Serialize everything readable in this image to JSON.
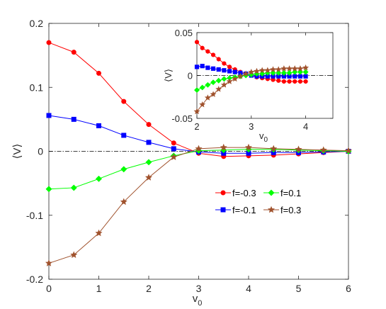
{
  "chart_data": [
    {
      "type": "line",
      "xlabel": "v",
      "xlabel_sub": "0",
      "ylabel": "⟨V⟩",
      "xlim": [
        0,
        6
      ],
      "ylim": [
        -0.2,
        0.2
      ],
      "xticks": [
        "0",
        "1",
        "2",
        "3",
        "4",
        "5",
        "6"
      ],
      "yticks": [
        "-0.2",
        "-0.1",
        "0",
        "0.1",
        "0.2"
      ],
      "reference_line": {
        "y": 0,
        "style": "dash-dot",
        "color": "#000000"
      },
      "x": [
        0,
        0.5,
        1,
        1.5,
        2,
        2.5,
        3,
        3.5,
        4,
        4.5,
        5,
        5.5,
        6
      ],
      "series": [
        {
          "name": "f=-0.3",
          "color": "#ff0000",
          "marker": "circle",
          "values": [
            0.17,
            0.155,
            0.122,
            0.078,
            0.042,
            0.013,
            -0.003,
            -0.008,
            -0.007,
            -0.006,
            -0.004,
            -0.002,
            0.0
          ]
        },
        {
          "name": "f=-0.1",
          "color": "#0000ff",
          "marker": "square",
          "values": [
            0.056,
            0.05,
            0.04,
            0.025,
            0.014,
            0.004,
            -0.001,
            -0.003,
            -0.003,
            -0.002,
            -0.002,
            -0.001,
            0.0
          ]
        },
        {
          "name": "f=0.1",
          "color": "#00ff00",
          "marker": "diamond",
          "values": [
            -0.059,
            -0.057,
            -0.043,
            -0.028,
            -0.017,
            -0.007,
            0.001,
            0.002,
            0.003,
            0.003,
            0.002,
            0.001,
            0.0
          ]
        },
        {
          "name": "f=0.3",
          "color": "#a0522d",
          "marker": "star",
          "values": [
            -0.175,
            -0.162,
            -0.128,
            -0.079,
            -0.041,
            -0.009,
            0.004,
            0.006,
            0.006,
            0.004,
            0.003,
            0.002,
            0.001
          ]
        }
      ],
      "legend": {
        "placement": "center-right",
        "entries": [
          "f=-0.3",
          "f=0.1",
          "f=-0.1",
          "f=0.3"
        ]
      }
    },
    {
      "type": "line",
      "inset": true,
      "xlabel": "v",
      "xlabel_sub": "0",
      "ylabel": "⟨V⟩",
      "xlim": [
        2,
        4.5
      ],
      "ylim": [
        -0.05,
        0.05
      ],
      "xticks": [
        "2",
        "3",
        "4"
      ],
      "xtick_values": [
        2,
        3,
        4
      ],
      "yticks": [
        "-0.05",
        "0",
        "0.05"
      ],
      "ytick_values": [
        -0.05,
        0,
        0.05
      ],
      "reference_line": {
        "y": 0,
        "style": "dash-dot",
        "color": "#000000"
      },
      "x": [
        2,
        2.1,
        2.2,
        2.3,
        2.4,
        2.5,
        2.6,
        2.7,
        2.8,
        2.9,
        3.0,
        3.1,
        3.2,
        3.3,
        3.4,
        3.5,
        3.6,
        3.7,
        3.8,
        3.9,
        4.0
      ],
      "series": [
        {
          "name": "f=-0.3",
          "color": "#ff0000",
          "marker": "circle",
          "values": [
            0.039,
            0.032,
            0.028,
            0.024,
            0.019,
            0.014,
            0.01,
            0.007,
            0.004,
            0.002,
            0.0,
            -0.002,
            -0.003,
            -0.004,
            -0.005,
            -0.006,
            -0.007,
            -0.007,
            -0.007,
            -0.007,
            -0.007
          ]
        },
        {
          "name": "f=-0.1",
          "color": "#0000ff",
          "marker": "square",
          "values": [
            0.01,
            0.011,
            0.009,
            0.008,
            0.007,
            0.006,
            0.005,
            0.004,
            0.003,
            0.002,
            0.0,
            -0.001,
            -0.001,
            -0.001,
            -0.001,
            -0.001,
            -0.001,
            -0.001,
            -0.001,
            -0.001,
            -0.001
          ]
        },
        {
          "name": "f=0.1",
          "color": "#00ff00",
          "marker": "diamond",
          "values": [
            -0.017,
            -0.014,
            -0.011,
            -0.008,
            -0.006,
            -0.004,
            -0.003,
            -0.002,
            -0.001,
            0.0,
            0.001,
            0.002,
            0.002,
            0.003,
            0.003,
            0.003,
            0.003,
            0.003,
            0.004,
            0.004,
            0.004
          ]
        },
        {
          "name": "f=0.3",
          "color": "#a0522d",
          "marker": "star",
          "values": [
            -0.042,
            -0.034,
            -0.026,
            -0.022,
            -0.016,
            -0.011,
            -0.007,
            -0.004,
            -0.001,
            0.002,
            0.004,
            0.005,
            0.006,
            0.006,
            0.007,
            0.007,
            0.008,
            0.008,
            0.008,
            0.008,
            0.009
          ]
        }
      ]
    }
  ]
}
